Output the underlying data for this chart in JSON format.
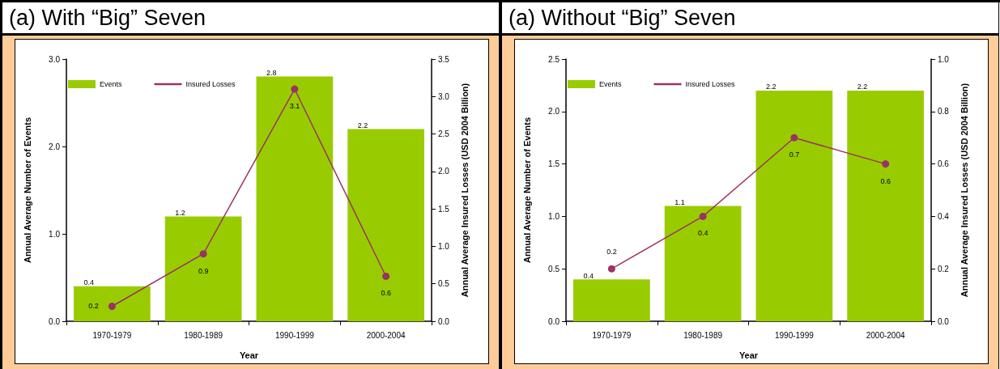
{
  "chart_data": [
    {
      "type": "bar",
      "title": "(a) With “Big” Seven",
      "xlabel": "Year",
      "ylabel": "Annual Average Number of Events",
      "y2label": "Annual Average Insured Losses (USD 2004 Billion)",
      "categories": [
        "1970-1979",
        "1980-1989",
        "1990-1999",
        "2000-2004"
      ],
      "series": [
        {
          "name": "Events",
          "color": "#99cc00",
          "values": [
            0.4,
            1.2,
            2.8,
            2.2
          ]
        },
        {
          "name": "Insured Losses",
          "type": "line",
          "axis": "y2",
          "color": "#993366",
          "values": [
            0.2,
            0.9,
            3.1,
            0.6
          ]
        }
      ],
      "ylim": [
        0,
        3
      ],
      "yticks": [
        {
          "value": 0,
          "label": "0.0"
        },
        {
          "value": 1,
          "label": "1.0"
        },
        {
          "value": 2,
          "label": "2.0"
        },
        {
          "value": 3,
          "label": "3.0"
        }
      ],
      "y2lim": [
        0,
        3.5
      ],
      "y2ticks": [
        {
          "value": 0,
          "label": "0.0"
        },
        0.5,
        {
          "value": 1,
          "label": "1.0"
        },
        1.5,
        {
          "value": 2,
          "label": "2.0"
        },
        2.5,
        {
          "value": 3,
          "label": "3.0"
        },
        3.5
      ],
      "data_labels": true,
      "legend": "top left",
      "grid": false,
      "marker": "circle",
      "line_style": "solid"
    },
    {
      "type": "bar",
      "title": "(a) Without “Big” Seven",
      "xlabel": "Year",
      "ylabel": "Annual Average Number of Events",
      "y2label": "Annual Average Insured Losses (USD 2004 Billion)",
      "categories": [
        "1970-1979",
        "1980-1989",
        "1990-1999",
        "2000-2004"
      ],
      "series": [
        {
          "name": "Events",
          "color": "#99cc00",
          "values": [
            0.4,
            1.1,
            2.2,
            2.2
          ]
        },
        {
          "name": "Insured Losses",
          "type": "line",
          "axis": "y2",
          "color": "#993366",
          "values": [
            0.2,
            0.4,
            0.7,
            0.6
          ]
        }
      ],
      "ylim": [
        0,
        2.5
      ],
      "yticks": [
        {
          "value": 0,
          "label": "0.0"
        },
        0.5,
        {
          "value": 1,
          "label": "1.0"
        },
        1.5,
        {
          "value": 2,
          "label": "2.0"
        },
        2.5
      ],
      "y2lim": [
        0,
        1
      ],
      "y2ticks": [
        {
          "value": 0,
          "label": "0.0"
        },
        0.2,
        0.4,
        0.6,
        0.8,
        {
          "value": 1,
          "label": "1.0"
        }
      ],
      "data_labels": true,
      "legend": "top left",
      "grid": false,
      "marker": "circle",
      "line_style": "solid"
    }
  ]
}
